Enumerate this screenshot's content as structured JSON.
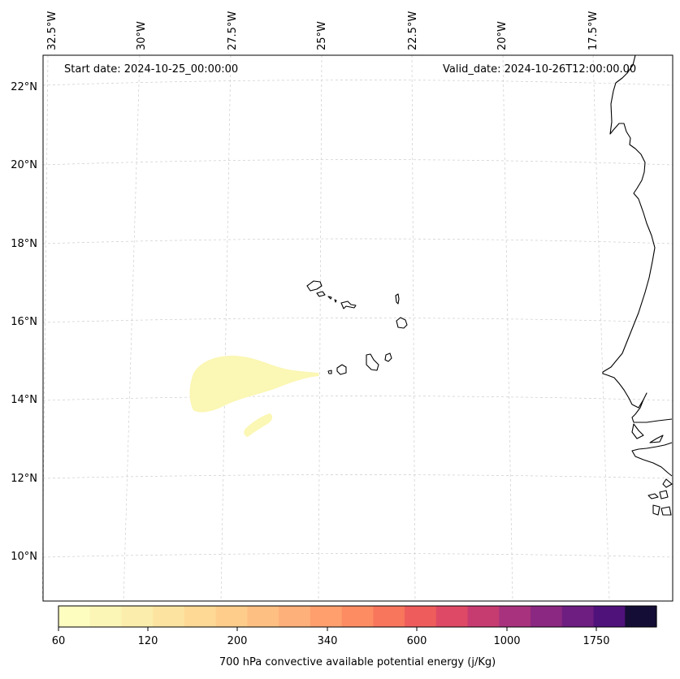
{
  "header": {
    "start_date": "Start date: 2024-10-25_00:00:00",
    "valid_date": "Valid_date: 2024-10-26T12:00:00.00"
  },
  "longitude_labels": [
    "32.5°W",
    "30°W",
    "27.5°W",
    "25°W",
    "22.5°W",
    "20°W",
    "17.5°W"
  ],
  "latitude_labels": [
    "22°N",
    "20°N",
    "18°N",
    "16°N",
    "14°N",
    "12°N",
    "10°N"
  ],
  "colorbar": {
    "caption": "700 hPa convective available potential energy (j/Kg)",
    "tick_labels": [
      "60",
      "120",
      "200",
      "340",
      "600",
      "1000",
      "1750"
    ],
    "colors": [
      "#fcfdbf",
      "#fbf5b6",
      "#fbedab",
      "#fde3a0",
      "#fdd995",
      "#fecd8b",
      "#febf82",
      "#feb07a",
      "#fe9f6d",
      "#fd8c63",
      "#f8765c",
      "#ee5d5c",
      "#de4a65",
      "#c63c71",
      "#a8327d",
      "#8b2881",
      "#6e1e81",
      "#4f127b",
      "#140e36"
    ]
  },
  "map_data": {
    "field": "700 hPa convective available potential energy",
    "units": "j/Kg",
    "shaded_regions": [
      {
        "level": "60-120 j/Kg",
        "color": "#fbf7b4",
        "location": "west of Cape Verde islands, near 14.5°N 28°W"
      },
      {
        "level": "60-120 j/Kg",
        "color": "#fbf7b4",
        "location": "near 13°N 27°W"
      }
    ],
    "coastline": "Cape Verde islands and West African coast (Mauritania, Senegal, Gambia, Guinea-Bissau)"
  }
}
